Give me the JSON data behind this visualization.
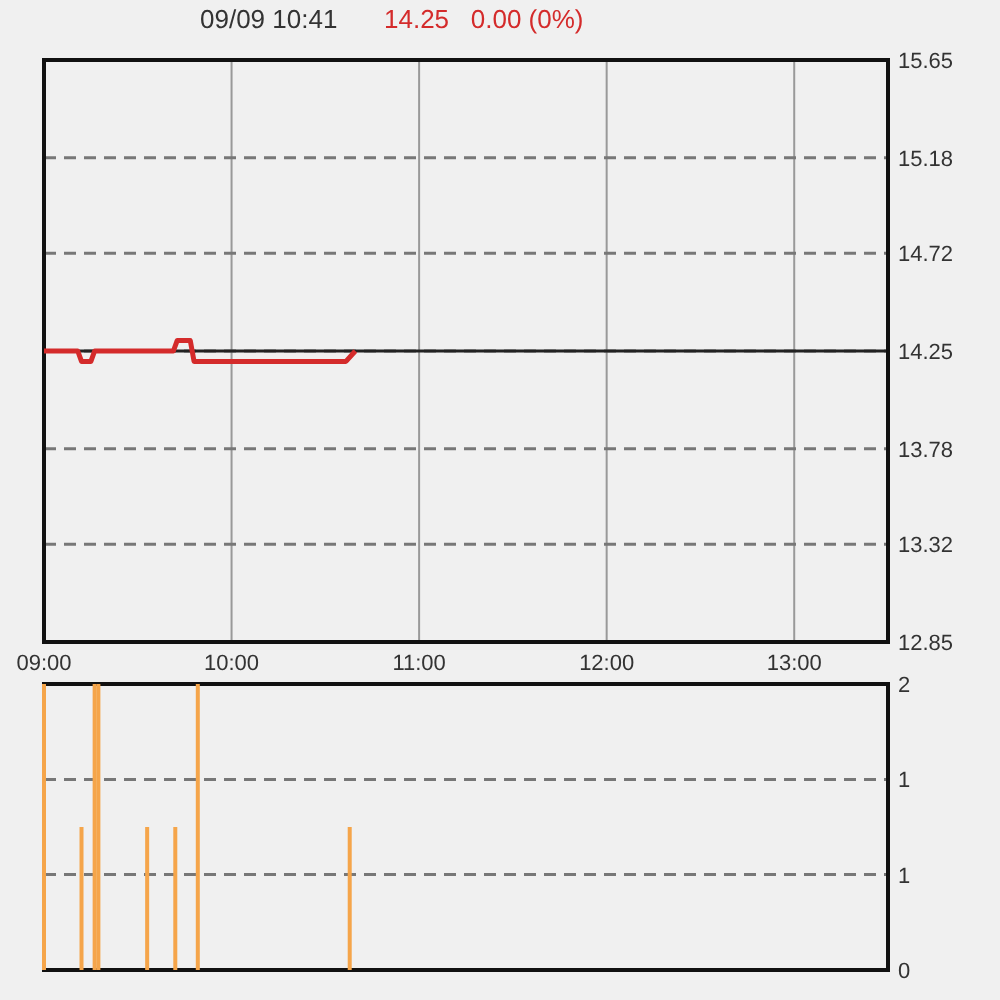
{
  "chart_data": [
    {
      "type": "line",
      "title": "09/09 10:41",
      "subtitle": "14.25   0.00 (0%)",
      "x": [
        9,
        9.18,
        9.2,
        9.25,
        9.27,
        9.69,
        9.71,
        9.78,
        9.8,
        10.61,
        10.66
      ],
      "series": [
        {
          "color": "#d42b2b",
          "values": [
            14.25,
            14.25,
            14.2,
            14.2,
            14.25,
            14.25,
            14.3,
            14.3,
            14.2,
            14.2,
            14.25
          ]
        }
      ],
      "xlim": [
        9,
        13.5
      ],
      "xticks": [
        {
          "value": 9,
          "label": "09:00"
        },
        {
          "value": 10,
          "label": "10:00"
        },
        {
          "value": 11,
          "label": "11:00"
        },
        {
          "value": 12,
          "label": "12:00"
        },
        {
          "value": 13,
          "label": "13:00"
        }
      ],
      "ylim": [
        12.85,
        15.65
      ],
      "yticks": [
        12.85,
        13.32,
        13.78,
        14.25,
        14.72,
        15.18,
        15.65
      ],
      "grid": true,
      "ref_lines": [
        {
          "axis": "y",
          "value": 14.25,
          "color": "#222222"
        }
      ]
    },
    {
      "type": "bar",
      "x": [
        9,
        9.2,
        9.27,
        9.29,
        9.55,
        9.7,
        9.82,
        10.63
      ],
      "series": [
        {
          "color": "#f5a54a",
          "values": [
            2,
            1,
            2,
            2,
            1,
            1,
            2,
            1
          ]
        }
      ],
      "xlim": [
        9,
        13.5
      ],
      "ylim": [
        0,
        2
      ],
      "yticks": [
        0,
        {
          "value": 0.667,
          "label": "1"
        },
        {
          "value": 1.333,
          "label": "1"
        },
        2
      ],
      "grid": "y",
      "tick_labels": "y"
    }
  ]
}
